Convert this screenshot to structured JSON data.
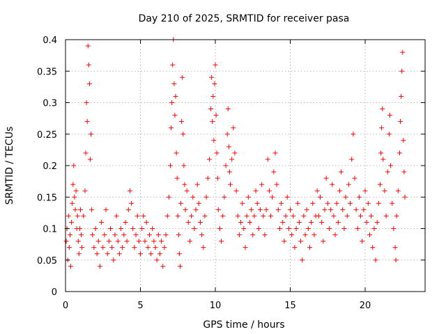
{
  "chart_data": {
    "type": "scatter",
    "title": "Day 210 of 2025, SRMTID for receiver pasa",
    "xlabel": "GPS time / hours",
    "ylabel": "SRMTID / TECUs",
    "xlim": [
      0,
      24
    ],
    "ylim": [
      0,
      0.4
    ],
    "x_ticks": [
      0,
      5,
      10,
      15,
      20
    ],
    "x_tick_labels": [
      "0",
      "5",
      "10",
      "15",
      "20"
    ],
    "y_ticks": [
      0,
      0.05,
      0.1,
      0.15,
      0.2,
      0.25,
      0.3,
      0.35,
      0.4
    ],
    "y_tick_labels": [
      "0",
      "0.05",
      "0.1",
      "0.15",
      "0.2",
      "0.25",
      "0.3",
      "0.35",
      "0.4"
    ],
    "grid": true,
    "marker": "+",
    "color": "#ff0000",
    "series": [
      {
        "name": "pasa",
        "points": [
          [
            0.05,
            0.08
          ],
          [
            0.1,
            0.1
          ],
          [
            0.15,
            0.05
          ],
          [
            0.2,
            0.12
          ],
          [
            0.25,
            0.07
          ],
          [
            0.3,
            0.09
          ],
          [
            0.35,
            0.04
          ],
          [
            0.4,
            0.11
          ],
          [
            0.45,
            0.14
          ],
          [
            0.5,
            0.17
          ],
          [
            0.55,
            0.2
          ],
          [
            0.6,
            0.15
          ],
          [
            0.65,
            0.13
          ],
          [
            0.7,
            0.16
          ],
          [
            0.75,
            0.1
          ],
          [
            0.8,
            0.12
          ],
          [
            0.85,
            0.08
          ],
          [
            0.9,
            0.06
          ],
          [
            0.95,
            0.1
          ],
          [
            1.0,
            0.13
          ],
          [
            1.05,
            0.09
          ],
          [
            1.1,
            0.07
          ],
          [
            1.2,
            0.12
          ],
          [
            1.3,
            0.16
          ],
          [
            1.35,
            0.22
          ],
          [
            1.4,
            0.3
          ],
          [
            1.45,
            0.27
          ],
          [
            1.5,
            0.39
          ],
          [
            1.55,
            0.36
          ],
          [
            1.6,
            0.33
          ],
          [
            1.65,
            0.21
          ],
          [
            1.7,
            0.25
          ],
          [
            1.75,
            0.13
          ],
          [
            1.8,
            0.09
          ],
          [
            1.9,
            0.07
          ],
          [
            2.0,
            0.1
          ],
          [
            2.1,
            0.06
          ],
          [
            2.2,
            0.08
          ],
          [
            2.3,
            0.04
          ],
          [
            2.4,
            0.11
          ],
          [
            2.5,
            0.07
          ],
          [
            2.6,
            0.09
          ],
          [
            2.7,
            0.13
          ],
          [
            2.8,
            0.06
          ],
          [
            2.9,
            0.08
          ],
          [
            3.0,
            0.1
          ],
          [
            3.1,
            0.07
          ],
          [
            3.2,
            0.05
          ],
          [
            3.3,
            0.09
          ],
          [
            3.4,
            0.12
          ],
          [
            3.5,
            0.08
          ],
          [
            3.6,
            0.06
          ],
          [
            3.7,
            0.1
          ],
          [
            3.8,
            0.07
          ],
          [
            3.9,
            0.09
          ],
          [
            4.0,
            0.11
          ],
          [
            4.1,
            0.08
          ],
          [
            4.2,
            0.13
          ],
          [
            4.3,
            0.16
          ],
          [
            4.4,
            0.14
          ],
          [
            4.5,
            0.1
          ],
          [
            4.6,
            0.07
          ],
          [
            4.7,
            0.09
          ],
          [
            4.8,
            0.12
          ],
          [
            4.9,
            0.08
          ],
          [
            5.0,
            0.06
          ],
          [
            5.1,
            0.1
          ],
          [
            5.2,
            0.12
          ],
          [
            5.3,
            0.08
          ],
          [
            5.4,
            0.11
          ],
          [
            5.5,
            0.07
          ],
          [
            5.6,
            0.09
          ],
          [
            5.7,
            0.06
          ],
          [
            5.8,
            0.1
          ],
          [
            5.9,
            0.08
          ],
          [
            6.0,
            0.07
          ],
          [
            6.1,
            0.05
          ],
          [
            6.2,
            0.09
          ],
          [
            6.3,
            0.06
          ],
          [
            6.4,
            0.08
          ],
          [
            6.5,
            0.04
          ],
          [
            6.6,
            0.07
          ],
          [
            6.7,
            0.09
          ],
          [
            6.8,
            0.12
          ],
          [
            6.9,
            0.15
          ],
          [
            7.0,
            0.2
          ],
          [
            7.05,
            0.26
          ],
          [
            7.1,
            0.3
          ],
          [
            7.15,
            0.36
          ],
          [
            7.2,
            0.4
          ],
          [
            7.25,
            0.33
          ],
          [
            7.3,
            0.28
          ],
          [
            7.35,
            0.31
          ],
          [
            7.4,
            0.22
          ],
          [
            7.45,
            0.18
          ],
          [
            7.5,
            0.12
          ],
          [
            7.55,
            0.09
          ],
          [
            7.6,
            0.06
          ],
          [
            7.65,
            0.04
          ],
          [
            7.7,
            0.14
          ],
          [
            7.75,
            0.27
          ],
          [
            7.8,
            0.34
          ],
          [
            7.85,
            0.25
          ],
          [
            7.9,
            0.2
          ],
          [
            7.95,
            0.17
          ],
          [
            8.0,
            0.13
          ],
          [
            8.1,
            0.16
          ],
          [
            8.2,
            0.11
          ],
          [
            8.3,
            0.08
          ],
          [
            8.4,
            0.12
          ],
          [
            8.5,
            0.15
          ],
          [
            8.6,
            0.1
          ],
          [
            8.7,
            0.13
          ],
          [
            8.8,
            0.17
          ],
          [
            8.9,
            0.14
          ],
          [
            9.0,
            0.11
          ],
          [
            9.1,
            0.09
          ],
          [
            9.2,
            0.07
          ],
          [
            9.3,
            0.12
          ],
          [
            9.4,
            0.15
          ],
          [
            9.5,
            0.18
          ],
          [
            9.6,
            0.21
          ],
          [
            9.7,
            0.29
          ],
          [
            9.75,
            0.34
          ],
          [
            9.8,
            0.27
          ],
          [
            9.85,
            0.31
          ],
          [
            9.9,
            0.24
          ],
          [
            9.95,
            0.33
          ],
          [
            10.0,
            0.36
          ],
          [
            10.05,
            0.28
          ],
          [
            10.1,
            0.22
          ],
          [
            10.15,
            0.18
          ],
          [
            10.2,
            0.13
          ],
          [
            10.3,
            0.1
          ],
          [
            10.4,
            0.08
          ],
          [
            10.5,
            0.12
          ],
          [
            10.6,
            0.15
          ],
          [
            10.7,
            0.2
          ],
          [
            10.8,
            0.25
          ],
          [
            10.85,
            0.29
          ],
          [
            10.9,
            0.23
          ],
          [
            10.95,
            0.19
          ],
          [
            11.0,
            0.17
          ],
          [
            11.1,
            0.21
          ],
          [
            11.2,
            0.26
          ],
          [
            11.3,
            0.22
          ],
          [
            11.4,
            0.16
          ],
          [
            11.5,
            0.12
          ],
          [
            11.6,
            0.09
          ],
          [
            11.7,
            0.11
          ],
          [
            11.8,
            0.14
          ],
          [
            11.9,
            0.1
          ],
          [
            12.0,
            0.07
          ],
          [
            12.1,
            0.12
          ],
          [
            12.2,
            0.15
          ],
          [
            12.3,
            0.11
          ],
          [
            12.4,
            0.13
          ],
          [
            12.5,
            0.09
          ],
          [
            12.6,
            0.12
          ],
          [
            12.7,
            0.16
          ],
          [
            12.8,
            0.14
          ],
          [
            12.9,
            0.1
          ],
          [
            13.0,
            0.13
          ],
          [
            13.1,
            0.17
          ],
          [
            13.2,
            0.12
          ],
          [
            13.3,
            0.09
          ],
          [
            13.4,
            0.13
          ],
          [
            13.5,
            0.21
          ],
          [
            13.6,
            0.16
          ],
          [
            13.7,
            0.12
          ],
          [
            13.8,
            0.15
          ],
          [
            13.9,
            0.19
          ],
          [
            14.0,
            0.22
          ],
          [
            14.1,
            0.17
          ],
          [
            14.2,
            0.13
          ],
          [
            14.3,
            0.1
          ],
          [
            14.4,
            0.14
          ],
          [
            14.5,
            0.11
          ],
          [
            14.6,
            0.08
          ],
          [
            14.7,
            0.12
          ],
          [
            14.8,
            0.15
          ],
          [
            14.9,
            0.1
          ],
          [
            15.0,
            0.13
          ],
          [
            15.1,
            0.09
          ],
          [
            15.2,
            0.12
          ],
          [
            15.3,
            0.07
          ],
          [
            15.4,
            0.1
          ],
          [
            15.5,
            0.14
          ],
          [
            15.6,
            0.11
          ],
          [
            15.7,
            0.08
          ],
          [
            15.8,
            0.05
          ],
          [
            15.9,
            0.12
          ],
          [
            16.0,
            0.09
          ],
          [
            16.1,
            0.13
          ],
          [
            16.2,
            0.1
          ],
          [
            16.3,
            0.07
          ],
          [
            16.4,
            0.11
          ],
          [
            16.5,
            0.14
          ],
          [
            16.6,
            0.09
          ],
          [
            16.7,
            0.12
          ],
          [
            16.8,
            0.16
          ],
          [
            16.9,
            0.12
          ],
          [
            17.0,
            0.15
          ],
          [
            17.1,
            0.11
          ],
          [
            17.2,
            0.08
          ],
          [
            17.3,
            0.13
          ],
          [
            17.4,
            0.18
          ],
          [
            17.5,
            0.14
          ],
          [
            17.6,
            0.1
          ],
          [
            17.7,
            0.13
          ],
          [
            17.8,
            0.17
          ],
          [
            17.9,
            0.12
          ],
          [
            18.0,
            0.09
          ],
          [
            18.1,
            0.14
          ],
          [
            18.2,
            0.11
          ],
          [
            18.3,
            0.16
          ],
          [
            18.4,
            0.19
          ],
          [
            18.5,
            0.13
          ],
          [
            18.6,
            0.1
          ],
          [
            18.7,
            0.15
          ],
          [
            18.8,
            0.12
          ],
          [
            18.9,
            0.17
          ],
          [
            19.0,
            0.14
          ],
          [
            19.1,
            0.21
          ],
          [
            19.2,
            0.25
          ],
          [
            19.3,
            0.18
          ],
          [
            19.4,
            0.13
          ],
          [
            19.5,
            0.1
          ],
          [
            19.6,
            0.15
          ],
          [
            19.7,
            0.12
          ],
          [
            19.8,
            0.08
          ],
          [
            19.9,
            0.13
          ],
          [
            20.0,
            0.16
          ],
          [
            20.1,
            0.11
          ],
          [
            20.2,
            0.14
          ],
          [
            20.3,
            0.09
          ],
          [
            20.4,
            0.12
          ],
          [
            20.5,
            0.07
          ],
          [
            20.6,
            0.1
          ],
          [
            20.7,
            0.05
          ],
          [
            20.8,
            0.11
          ],
          [
            20.9,
            0.14
          ],
          [
            21.0,
            0.17
          ],
          [
            21.05,
            0.22
          ],
          [
            21.1,
            0.26
          ],
          [
            21.15,
            0.29
          ],
          [
            21.2,
            0.21
          ],
          [
            21.3,
            0.16
          ],
          [
            21.4,
            0.12
          ],
          [
            21.5,
            0.19
          ],
          [
            21.6,
            0.25
          ],
          [
            21.65,
            0.28
          ],
          [
            21.7,
            0.2
          ],
          [
            21.8,
            0.14
          ],
          [
            21.9,
            0.1
          ],
          [
            22.0,
            0.07
          ],
          [
            22.05,
            0.05
          ],
          [
            22.1,
            0.12
          ],
          [
            22.2,
            0.16
          ],
          [
            22.3,
            0.22
          ],
          [
            22.35,
            0.27
          ],
          [
            22.4,
            0.31
          ],
          [
            22.45,
            0.35
          ],
          [
            22.5,
            0.38
          ],
          [
            22.55,
            0.24
          ],
          [
            22.6,
            0.19
          ],
          [
            22.65,
            0.15
          ]
        ]
      }
    ]
  }
}
